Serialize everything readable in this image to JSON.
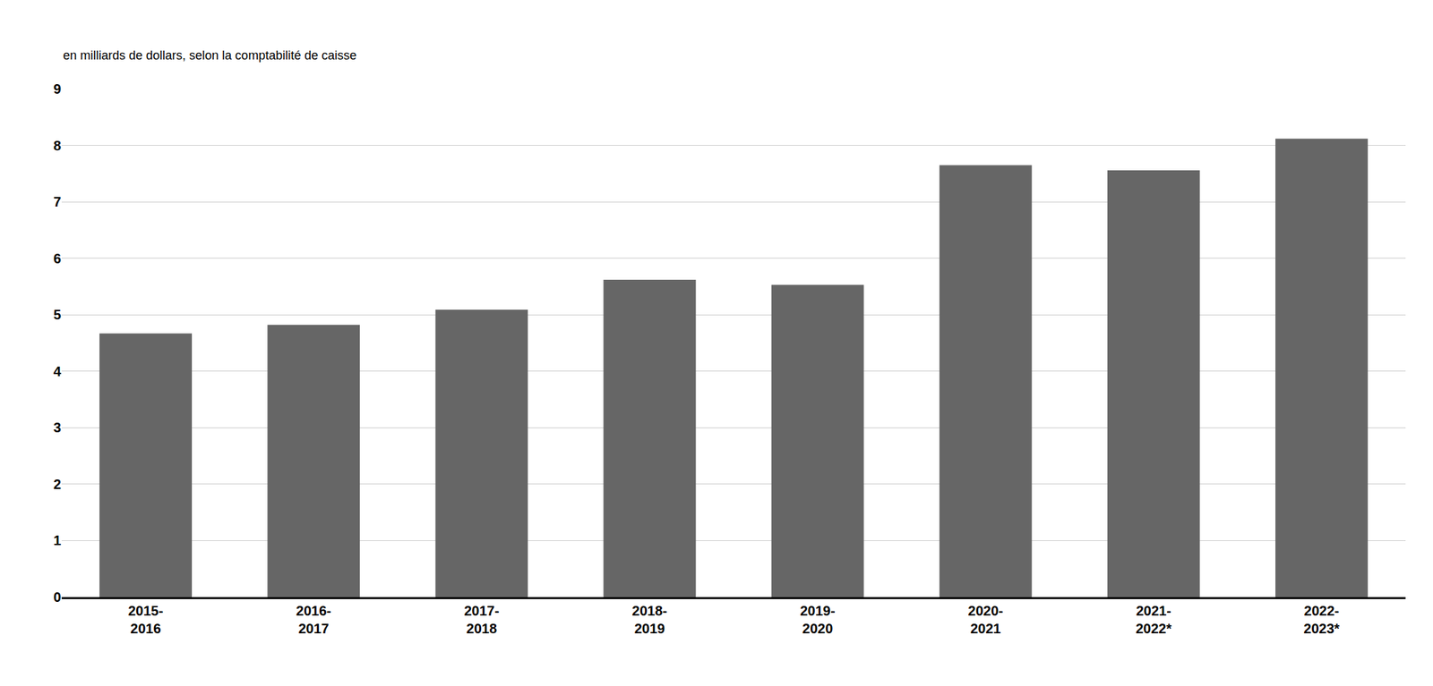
{
  "chart_data": {
    "type": "bar",
    "ylabel": "en milliards de dollars, selon la comptabilité de caisse",
    "categories": [
      "2015-\n2016",
      "2016-\n2017",
      "2017-\n2018",
      "2018-\n2019",
      "2019-\n2020",
      "2020-\n2021",
      "2021-\n2022*",
      "2022-\n2023*"
    ],
    "values": [
      4.67,
      4.82,
      5.09,
      5.62,
      5.53,
      7.65,
      7.56,
      8.12
    ],
    "color": "#666666",
    "ylim": [
      0,
      9
    ],
    "yticks": [
      0,
      1,
      2,
      3,
      4,
      5,
      6,
      7,
      8,
      9
    ],
    "grid": true
  }
}
